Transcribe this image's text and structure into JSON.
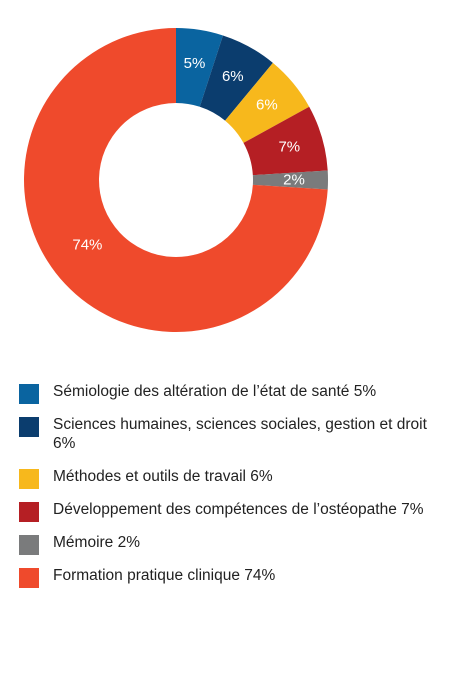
{
  "chart_data": {
    "type": "pie",
    "donut": true,
    "legend_position": "bottom",
    "slices": [
      {
        "label": "Sémiologie des altération de l’état de santé 5%",
        "value": 5,
        "display": "5%",
        "color": "#0a64a0"
      },
      {
        "label": "Sciences humaines, sciences sociales, gestion et droit 6%",
        "value": 6,
        "display": "6%",
        "color": "#0b3d6e"
      },
      {
        "label": "Méthodes et outils de travail 6%",
        "value": 6,
        "display": "6%",
        "color": "#f7b81c"
      },
      {
        "label": "Développement des compétences de l’ostéopathe 7%",
        "value": 7,
        "display": "7%",
        "color": "#b51f24"
      },
      {
        "label": "Mémoire 2%",
        "value": 2,
        "display": "2%",
        "color": "#7a7b7c"
      },
      {
        "label": "Formation pratique clinique 74%",
        "value": 74,
        "display": "74%",
        "color": "#ef4a2c"
      }
    ]
  }
}
